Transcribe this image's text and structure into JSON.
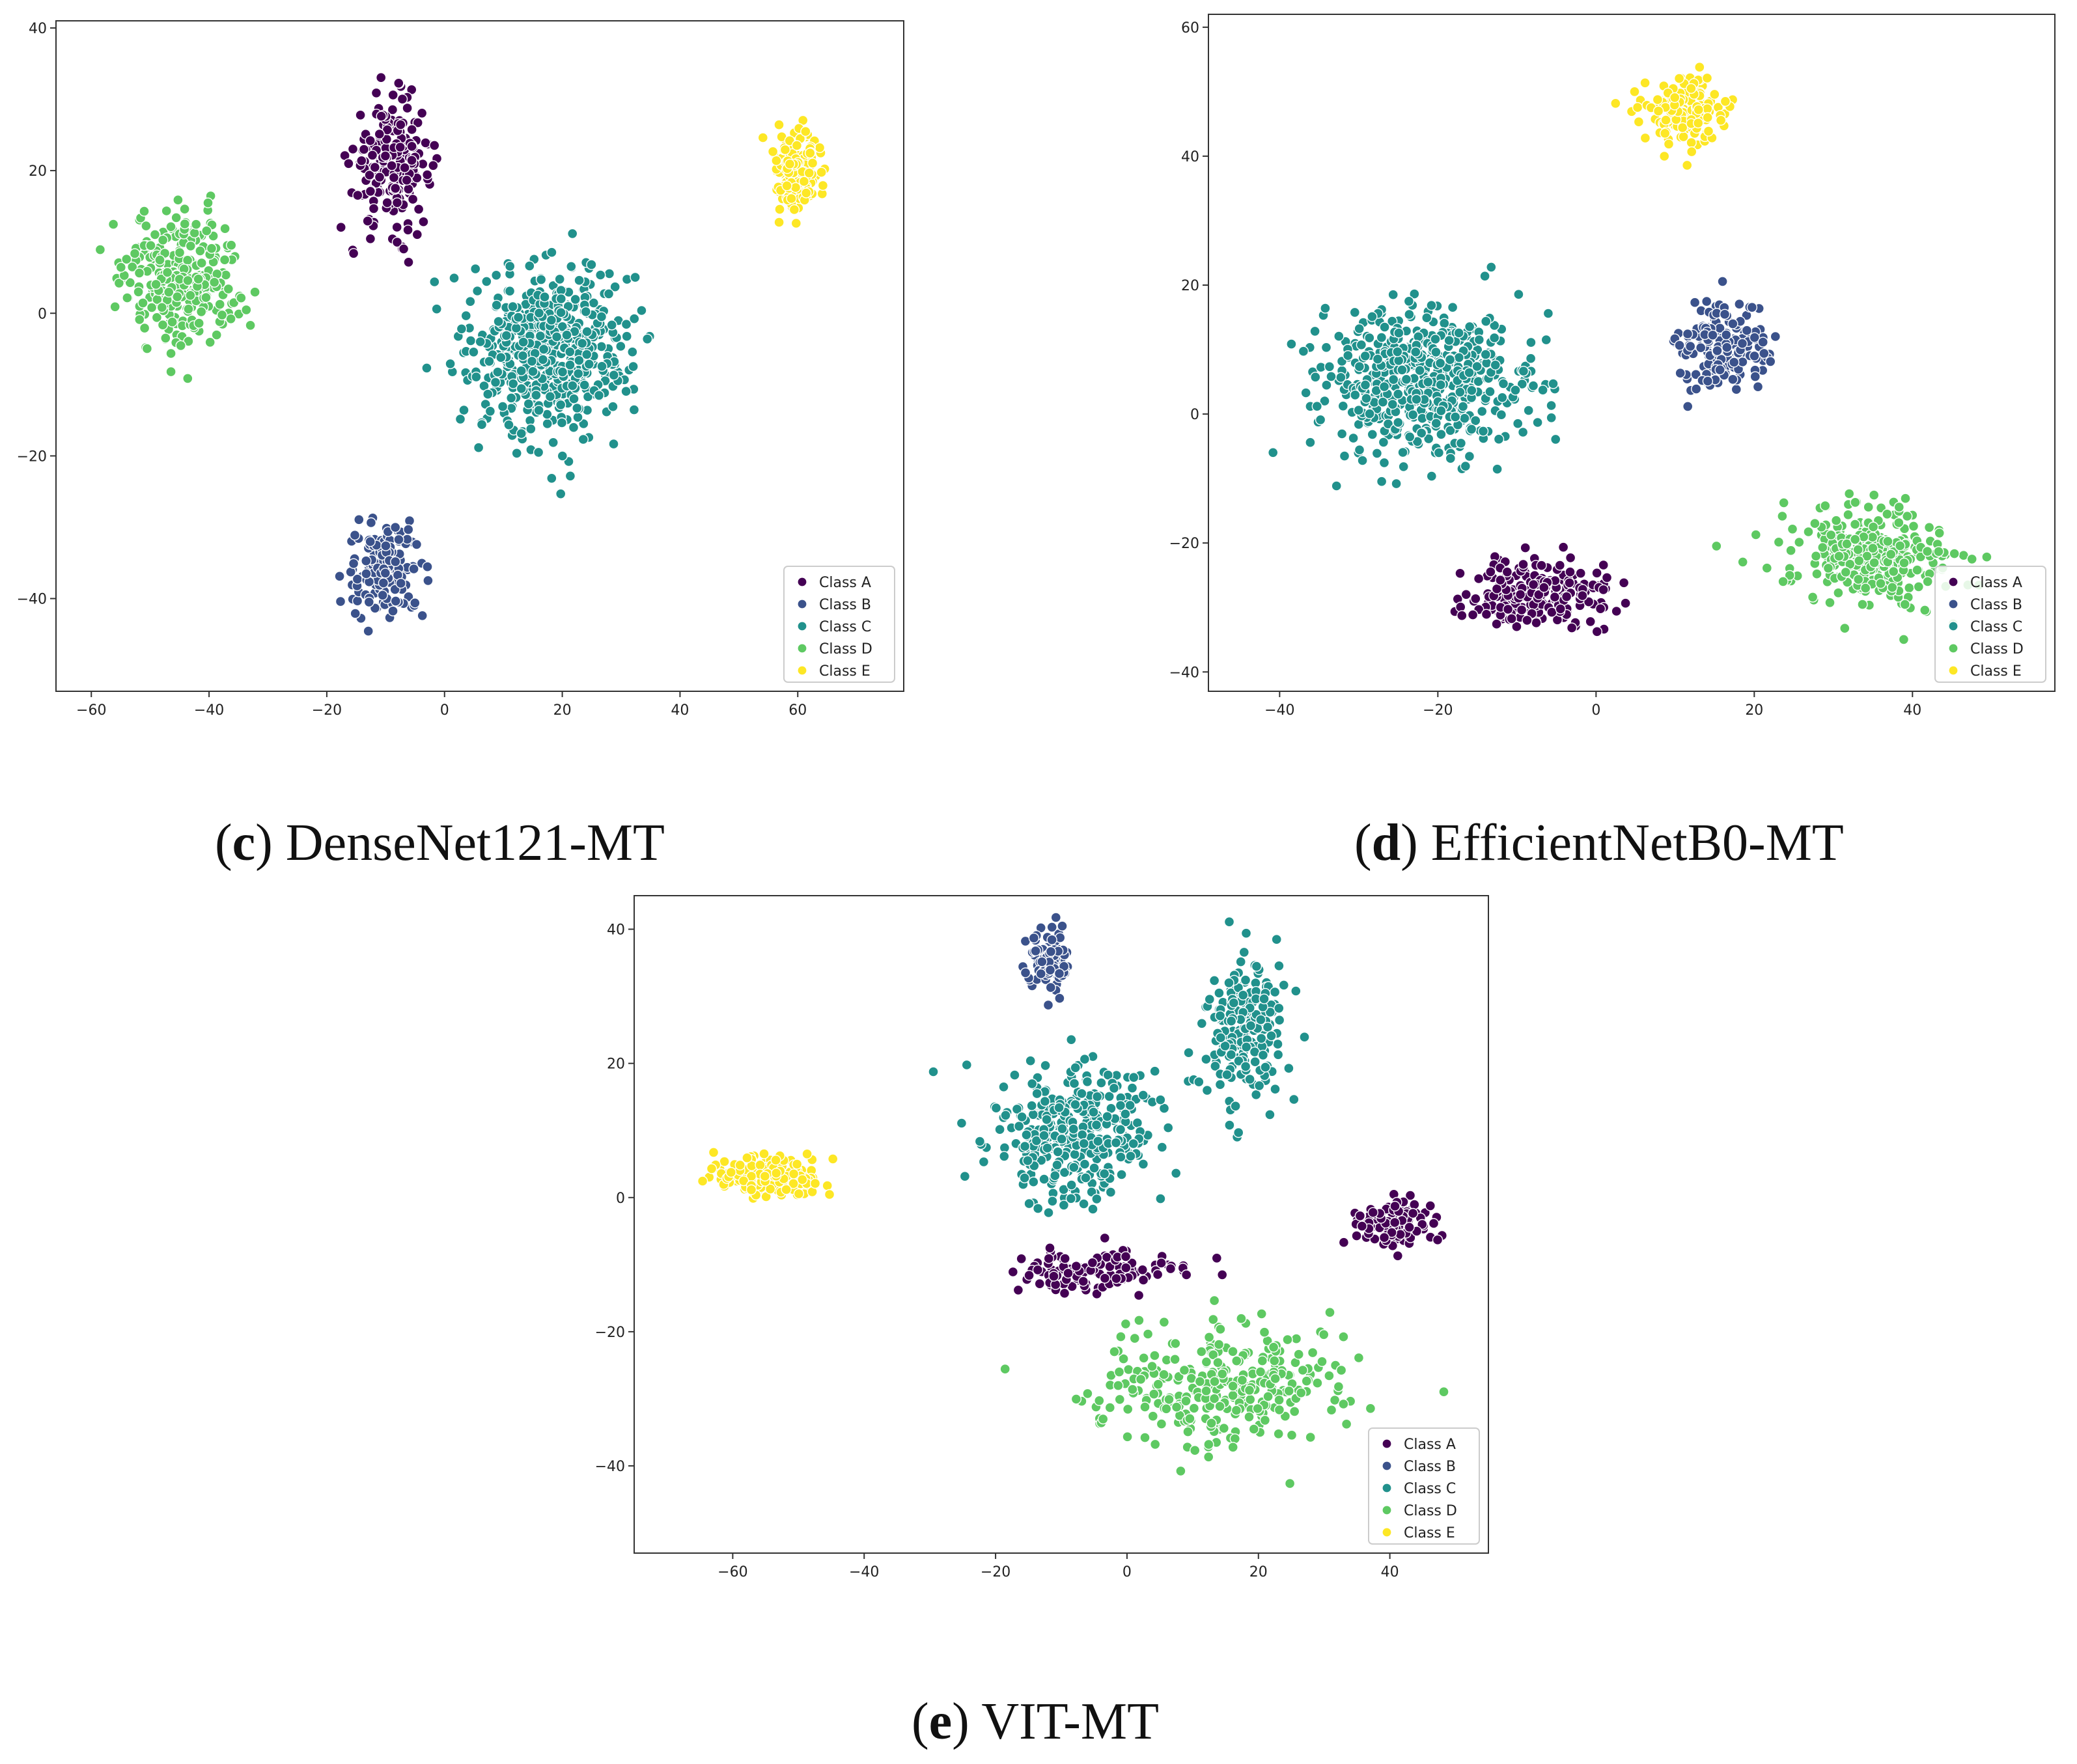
{
  "chart_data": [
    {
      "type": "scatter",
      "title": "",
      "xlabel": "",
      "ylabel": "",
      "xlim": [
        -66,
        78
      ],
      "ylim": [
        -53,
        41
      ],
      "xticks": [
        -60,
        -40,
        -20,
        0,
        20,
        40,
        60
      ],
      "yticks": [
        -40,
        -20,
        0,
        20,
        40
      ],
      "xtick_labels": [
        "−60",
        "−40",
        "−20",
        "0",
        "20",
        "40",
        "60"
      ],
      "ytick_labels": [
        "−40",
        "−20",
        "0",
        "20",
        "40"
      ],
      "legend_position": "bottom-right",
      "legend": [
        "Class A",
        "Class B",
        "Class C",
        "Class D",
        "Class E"
      ],
      "clusters": [
        {
          "class": "A",
          "cx": -9,
          "cy": 21,
          "sx": 6,
          "sy": 8,
          "n": 230
        },
        {
          "class": "B",
          "cx": -10,
          "cy": -36,
          "sx": 6,
          "sy": 6,
          "n": 150
        },
        {
          "class": "C",
          "cx": 18,
          "cy": -5,
          "sx": 12,
          "sy": 11,
          "n": 560
        },
        {
          "class": "D",
          "cx": -45,
          "cy": 5,
          "sx": 9,
          "sy": 8,
          "n": 320
        },
        {
          "class": "E",
          "cx": 60,
          "cy": 20,
          "sx": 4,
          "sy": 5,
          "n": 160
        }
      ]
    },
    {
      "type": "scatter",
      "title": "",
      "xlabel": "",
      "ylabel": "",
      "xlim": [
        -49,
        58
      ],
      "ylim": [
        -43,
        62
      ],
      "xticks": [
        -40,
        -20,
        0,
        20,
        40
      ],
      "yticks": [
        -40,
        -20,
        0,
        20,
        40,
        60
      ],
      "xtick_labels": [
        "−40",
        "−20",
        "0",
        "20",
        "40"
      ],
      "ytick_labels": [
        "−40",
        "−20",
        "0",
        "20",
        "40",
        "60"
      ],
      "legend_position": "bottom-right",
      "legend": [
        "Class A",
        "Class B",
        "Class C",
        "Class D",
        "Class E"
      ],
      "clusters": [
        {
          "class": "A",
          "cx": -7,
          "cy": -28,
          "sx": 8,
          "sy": 5,
          "n": 230
        },
        {
          "class": "B",
          "cx": 16,
          "cy": 10,
          "sx": 5,
          "sy": 6,
          "n": 180
        },
        {
          "class": "C",
          "cx": -22,
          "cy": 5,
          "sx": 12,
          "sy": 10,
          "n": 560
        },
        {
          "class": "D",
          "cx": 35,
          "cy": -22,
          "sx": 9,
          "sy": 7,
          "n": 320
        },
        {
          "class": "E",
          "cx": 11,
          "cy": 47,
          "sx": 5,
          "sy": 5,
          "n": 160
        }
      ]
    },
    {
      "type": "scatter",
      "title": "",
      "xlabel": "",
      "ylabel": "",
      "xlim": [
        -75,
        55
      ],
      "ylim": [
        -53,
        45
      ],
      "xticks": [
        -60,
        -40,
        -20,
        0,
        20,
        40
      ],
      "yticks": [
        -40,
        -20,
        0,
        20,
        40
      ],
      "xtick_labels": [
        "−60",
        "−40",
        "−20",
        "0",
        "20",
        "40"
      ],
      "ytick_labels": [
        "−40",
        "−20",
        "0",
        "20",
        "40"
      ],
      "legend_position": "bottom-right",
      "legend": [
        "Class A",
        "Class B",
        "Class C",
        "Class D",
        "Class E"
      ],
      "clusters": [
        {
          "class": "A",
          "cx": 40,
          "cy": -4,
          "sx": 5,
          "sy": 3,
          "n": 120
        },
        {
          "class": "A",
          "cx": -5,
          "cy": -11,
          "sx": 12,
          "sy": 3,
          "n": 130
        },
        {
          "class": "B",
          "cx": -12,
          "cy": 35,
          "sx": 3,
          "sy": 5,
          "n": 100
        },
        {
          "class": "C",
          "cx": -8,
          "cy": 10,
          "sx": 12,
          "sy": 9,
          "n": 350
        },
        {
          "class": "C",
          "cx": 18,
          "cy": 25,
          "sx": 6,
          "sy": 10,
          "n": 220
        },
        {
          "class": "D",
          "cx": 15,
          "cy": -28,
          "sx": 18,
          "sy": 8,
          "n": 300
        },
        {
          "class": "E",
          "cx": -55,
          "cy": 3,
          "sx": 8,
          "sy": 3,
          "n": 170
        }
      ]
    }
  ],
  "colors": {
    "A": "#440154",
    "B": "#3b528b",
    "C": "#21918c",
    "D": "#5ec962",
    "E": "#fde725"
  },
  "captions": [
    {
      "letter": "c",
      "model": " DenseNet121-MT"
    },
    {
      "letter": "d",
      "model": " EfficientNetB0-MT"
    },
    {
      "letter": "e",
      "model": " VIT-MT"
    }
  ]
}
